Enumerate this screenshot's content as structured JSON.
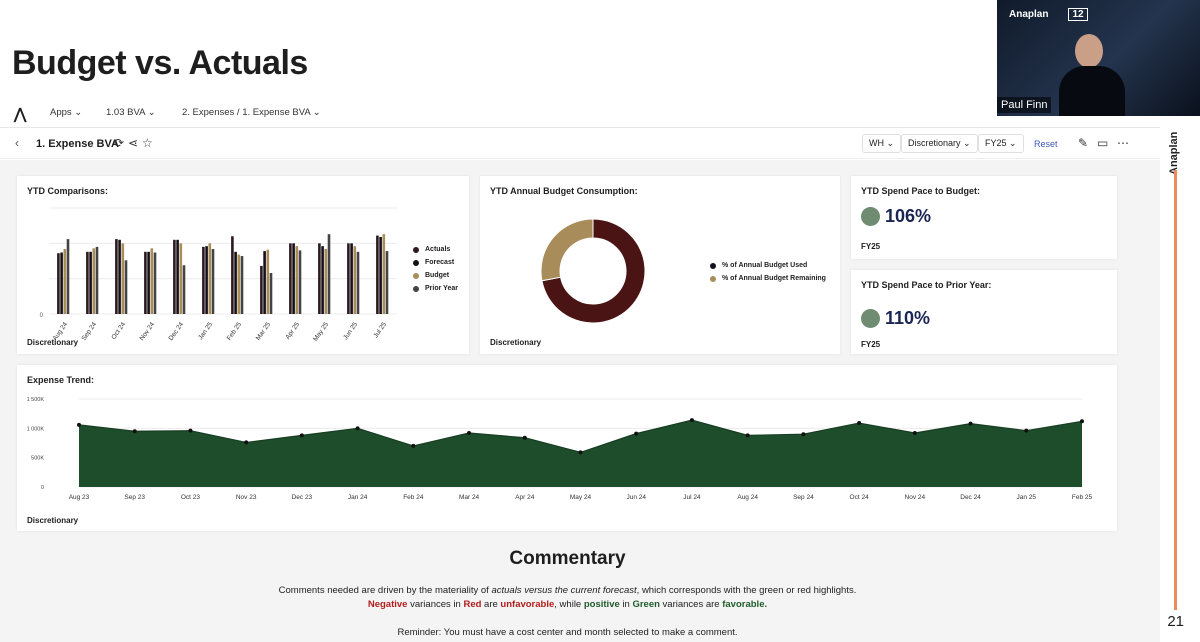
{
  "slide": {
    "title": "Budget vs. Actuals",
    "page_number": "21",
    "side_brand": "Anaplan"
  },
  "webcam": {
    "brand": "Anaplan",
    "partner_logo": "12",
    "speaker_name": "Paul Finn"
  },
  "nav": {
    "apps": "Apps",
    "model": "1.03 BVA",
    "path": "2. Expenses / 1. Expense BVA"
  },
  "page_header": {
    "title": "1. Expense BVA",
    "filters": [
      "WH",
      "Discretionary",
      "FY25"
    ],
    "reset_label": "Reset"
  },
  "ytd_comparisons": {
    "title": "YTD Comparisons:",
    "footer": "Discretionary"
  },
  "ytd_consumption": {
    "title": "YTD Annual Budget Consumption:",
    "footer": "Discretionary"
  },
  "spend_pace_budget": {
    "title": "YTD Spend Pace to Budget:",
    "value": "106%",
    "period": "FY25",
    "status_color": "#6f8b72"
  },
  "spend_pace_prior": {
    "title": "YTD Spend Pace to Prior Year:",
    "value": "110%",
    "period": "FY25",
    "status_color": "#6f8b72"
  },
  "expense_trend": {
    "title": "Expense Trend:",
    "footer": "Discretionary"
  },
  "commentary": {
    "title": "Commentary",
    "line1_a": "Comments needed are driven by the materiality of ",
    "line1_b": "actuals versus the current forecast",
    "line1_c": ", which corresponds with the green or red highlights.",
    "line2_neg": "Negative",
    "line2_a": " variances in ",
    "line2_red": "Red",
    "line2_b": " are ",
    "line2_unfav": "unfavorable",
    "line2_c": ", while ",
    "line2_pos": "positive",
    "line2_d": " in ",
    "line2_green": "Green",
    "line2_e": " variances are ",
    "line2_fav": "favorable.",
    "reminder": "Reminder: You must have a cost center and month selected to make a comment."
  },
  "colors": {
    "actuals": "#2b1a20",
    "forecast": "#16101a",
    "budget": "#a88c5a",
    "prior_year": "#444444",
    "used": "#4a1414",
    "remaining": "#a88c5a",
    "trend_fill": "#1e4d2b"
  },
  "chart_data": [
    {
      "type": "bar",
      "categories": [
        "Aug 24",
        "Sep 24",
        "Oct 24",
        "Nov 24",
        "Dec 24",
        "Jan 25",
        "Feb 25",
        "Mar 25",
        "Apr 25",
        "May 25",
        "Jun 25",
        "Jul 25"
      ],
      "series": [
        {
          "name": "Actuals",
          "values": [
            860000,
            880000,
            1060000,
            880000,
            1050000,
            950000,
            1100000,
            680000,
            1000000,
            1000000,
            1000000,
            1110000
          ]
        },
        {
          "name": "Forecast",
          "values": [
            870000,
            880000,
            1050000,
            880000,
            1050000,
            960000,
            880000,
            890000,
            1000000,
            960000,
            1000000,
            1090000
          ]
        },
        {
          "name": "Budget",
          "values": [
            920000,
            930000,
            1000000,
            930000,
            1000000,
            1000000,
            840000,
            910000,
            960000,
            920000,
            960000,
            1130000
          ]
        },
        {
          "name": "Prior Year",
          "values": [
            1060000,
            950000,
            760000,
            870000,
            690000,
            920000,
            820000,
            580000,
            900000,
            1130000,
            880000,
            890000
          ]
        }
      ],
      "legend": [
        "Actuals",
        "Forecast",
        "Budget",
        "Prior Year"
      ],
      "ytick_labels": [
        "0"
      ],
      "ylim": [
        0,
        1500000
      ]
    },
    {
      "type": "pie",
      "donut": true,
      "labels": [
        "% of Annual Budget Used",
        "% of Annual Budget Remaining"
      ],
      "values": [
        72,
        28
      ]
    },
    {
      "type": "area",
      "x": [
        "Aug 23",
        "Sep 23",
        "Oct 23",
        "Nov 23",
        "Dec 23",
        "Jan 24",
        "Feb 24",
        "Mar 24",
        "Apr 24",
        "May 24",
        "Jun 24",
        "Jul 24",
        "Aug 24",
        "Sep 24",
        "Oct 24",
        "Nov 24",
        "Dec 24",
        "Jan 25",
        "Feb 25"
      ],
      "values": [
        1060000,
        950000,
        960000,
        760000,
        880000,
        1000000,
        700000,
        920000,
        840000,
        590000,
        910000,
        1140000,
        880000,
        900000,
        1090000,
        920000,
        1080000,
        960000,
        1120000
      ],
      "yticks": [
        "0",
        "500K",
        "1 000K",
        "1 500K"
      ],
      "ylim": [
        0,
        1500000
      ]
    }
  ]
}
